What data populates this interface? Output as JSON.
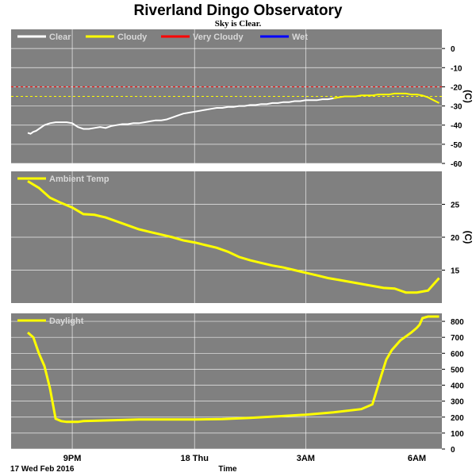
{
  "header": {
    "title": "Riverland Dingo Observatory",
    "subtitle": "Sky is Clear."
  },
  "footer": {
    "date_label": "17 Wed Feb 2016",
    "time_label": "Time"
  },
  "colors": {
    "panel_bg": "#808080",
    "grid": "#ffffff",
    "clear": "#ffffff",
    "cloudy": "#ffff00",
    "very_cloudy": "#ff0000",
    "wet": "#0000ff",
    "ambient": "#ffff00",
    "daylight": "#ffff00"
  },
  "x_ticks": [
    "9PM",
    "18 Thu",
    "3AM",
    "6AM"
  ],
  "chart_data": [
    {
      "type": "line",
      "name": "sky-temperature",
      "legend": [
        "Clear",
        "Cloudy",
        "Very Cloudy",
        "Wet"
      ],
      "legend_placement": "top-left",
      "unit_label": "(C)",
      "ylim": [
        -60,
        10
      ],
      "yticks": [
        0,
        -10,
        -20,
        -30,
        -40,
        -50,
        -60
      ],
      "grid": true,
      "thresholds": [
        {
          "name": "Very Cloudy",
          "value": -20
        },
        {
          "name": "Cloudy",
          "value": -25
        }
      ],
      "x": [
        0,
        0.05,
        0.1,
        0.15,
        0.2,
        0.3,
        0.4,
        0.5,
        0.6,
        0.7,
        0.8,
        0.9,
        1.0,
        1.1,
        1.2,
        1.3,
        1.4,
        1.5,
        1.6,
        1.7,
        1.8,
        1.9,
        2.0,
        2.1,
        2.2,
        2.3,
        2.4,
        2.5,
        2.6,
        2.7,
        2.8,
        2.9,
        3.0,
        3.1,
        3.2,
        3.3,
        3.4,
        3.5,
        3.6,
        3.7,
        3.8,
        3.9,
        4.0,
        4.1,
        4.2,
        4.3,
        4.4,
        4.5,
        4.6,
        4.7,
        4.8,
        4.9,
        5.0,
        5.1,
        5.2,
        5.3,
        5.4,
        5.5,
        5.6,
        5.7,
        5.8,
        5.9,
        6.0,
        6.1,
        6.2,
        6.3,
        6.4,
        6.5,
        6.6,
        6.7,
        6.8,
        6.9,
        7.0,
        7.1,
        7.2,
        7.3,
        7.4
      ],
      "y": [
        -44,
        -44.5,
        -43.5,
        -43,
        -42,
        -40,
        -39,
        -38.5,
        -38.5,
        -38.5,
        -39,
        -41,
        -42,
        -42,
        -41.5,
        -41,
        -41.5,
        -40.5,
        -40,
        -39.5,
        -39.5,
        -39,
        -39,
        -38.5,
        -38,
        -37.5,
        -37.5,
        -37,
        -36,
        -35,
        -34,
        -33.5,
        -33,
        -32.5,
        -32,
        -31.5,
        -31,
        -31,
        -30.5,
        -30.5,
        -30,
        -30,
        -29.5,
        -29.5,
        -29,
        -29,
        -28.5,
        -28.5,
        -28,
        -28,
        -27.5,
        -27.5,
        -27,
        -27,
        -27,
        -26.5,
        -26.5,
        -26,
        -25.5,
        -25,
        -25,
        -25,
        -24.5,
        -24.5,
        -24.5,
        -24,
        -24,
        -24,
        -23.5,
        -23.5,
        -23.5,
        -24,
        -24,
        -24.5,
        -25.5,
        -27,
        -28.5
      ],
      "cloudy_from_x": 5.5
    },
    {
      "type": "line",
      "name": "ambient-temperature",
      "legend": [
        "Ambient Temp"
      ],
      "legend_placement": "top-left",
      "unit_label": "(C)",
      "ylim": [
        10,
        30
      ],
      "yticks": [
        15,
        20,
        25
      ],
      "grid": true,
      "x": [
        0,
        0.2,
        0.4,
        0.6,
        0.8,
        1.0,
        1.2,
        1.4,
        1.6,
        1.8,
        2.0,
        2.2,
        2.4,
        2.6,
        2.8,
        3.0,
        3.2,
        3.4,
        3.6,
        3.8,
        4.0,
        4.2,
        4.4,
        4.6,
        4.8,
        5.0,
        5.2,
        5.4,
        5.6,
        5.8,
        6.0,
        6.2,
        6.4,
        6.6,
        6.8,
        7.0,
        7.2,
        7.4
      ],
      "y": [
        28.5,
        27.5,
        26,
        25.2,
        24.5,
        23.5,
        23.4,
        23,
        22.4,
        21.8,
        21.2,
        20.8,
        20.4,
        20,
        19.5,
        19.2,
        18.8,
        18.4,
        17.8,
        17,
        16.5,
        16.1,
        15.7,
        15.4,
        15,
        14.6,
        14.2,
        13.8,
        13.5,
        13.2,
        12.9,
        12.6,
        12.3,
        12.2,
        11.6,
        11.6,
        11.9,
        13.8
      ]
    },
    {
      "type": "line",
      "name": "daylight",
      "legend": [
        "Daylight"
      ],
      "legend_placement": "top-left",
      "unit_label": "",
      "ylim": [
        0,
        850
      ],
      "yticks": [
        0,
        100,
        200,
        300,
        400,
        500,
        600,
        700,
        800
      ],
      "grid": true,
      "x": [
        0,
        0.1,
        0.2,
        0.3,
        0.4,
        0.5,
        0.6,
        0.7,
        0.8,
        0.9,
        1.0,
        1.5,
        2.0,
        2.5,
        3.0,
        3.5,
        4.0,
        4.5,
        5.0,
        5.5,
        6.0,
        6.2,
        6.35,
        6.45,
        6.55,
        6.7,
        6.9,
        7.0,
        7.05,
        7.1,
        7.2,
        7.3,
        7.4
      ],
      "y": [
        730,
        700,
        600,
        520,
        380,
        190,
        175,
        170,
        170,
        170,
        175,
        180,
        185,
        185,
        185,
        188,
        195,
        205,
        215,
        230,
        250,
        280,
        450,
        560,
        620,
        680,
        730,
        760,
        780,
        820,
        830,
        830,
        830
      ]
    }
  ]
}
